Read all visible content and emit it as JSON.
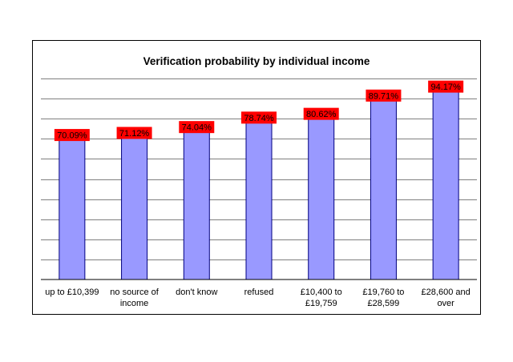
{
  "chart_data": {
    "type": "bar",
    "title": "Verification probability by individual income",
    "xlabel": "",
    "ylabel": "",
    "categories": [
      [
        "up to £10,399"
      ],
      [
        "no source of",
        "income"
      ],
      [
        "don't know"
      ],
      [
        "refused"
      ],
      [
        "£10,400 to",
        "£19,759"
      ],
      [
        "£19,760 to",
        "£28,599"
      ],
      [
        "£28,600 and",
        "over"
      ]
    ],
    "values": [
      70.09,
      71.12,
      74.04,
      78.74,
      80.62,
      89.71,
      94.17
    ],
    "data_labels": [
      "70.09%",
      "71.12%",
      "74.04%",
      "78.74%",
      "80.62%",
      "89.71%",
      "94.17%"
    ],
    "ylim": [
      0,
      100
    ],
    "grid": true,
    "legend": "none",
    "colors": {
      "bar_fill": "#9999ff",
      "bar_stroke": "#000080",
      "label_bg": "#ff0000",
      "grid": "#000000"
    }
  }
}
